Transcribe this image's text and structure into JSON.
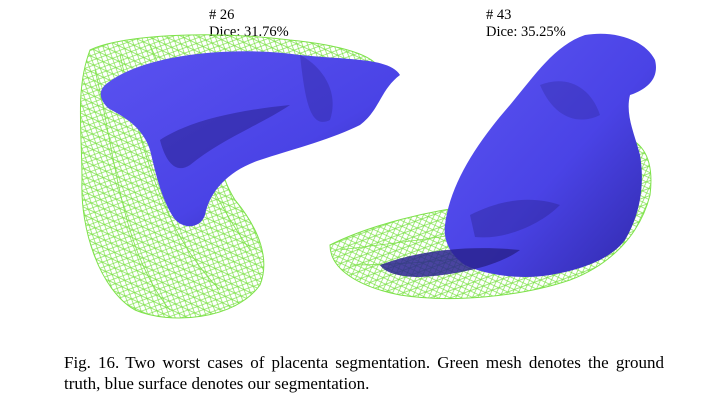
{
  "figure": {
    "cases": [
      {
        "case_label": "# 26",
        "dice_label": "Dice: 31.76%"
      },
      {
        "case_label": "# 43",
        "dice_label": "Dice: 35.25%"
      }
    ],
    "caption_number": "Fig. 16.",
    "caption_text": "Two worst cases of placenta segmentation. Green mesh denotes the ground truth, blue surface denotes our segmentation.",
    "colors": {
      "ground_truth_mesh": "#7ee24a",
      "segmentation_surface": "#4a43e6",
      "segmentation_shadow": "#2a238f"
    }
  }
}
